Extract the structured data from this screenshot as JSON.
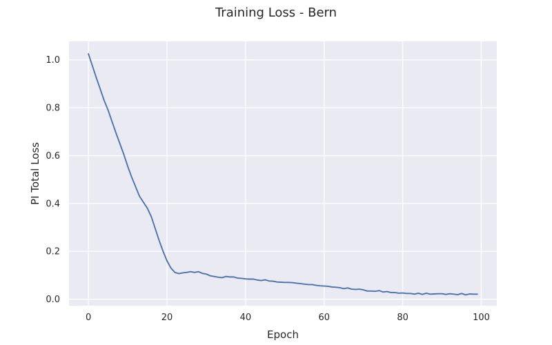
{
  "chart_data": {
    "type": "line",
    "title": "Training Loss - Bern",
    "xlabel": "Epoch",
    "ylabel": "PI Total Loss",
    "xlim": [
      -4.95,
      103.95
    ],
    "ylim": [
      -0.027,
      1.077
    ],
    "xticks": [
      0,
      20,
      40,
      60,
      80,
      100
    ],
    "xtick_labels": [
      "0",
      "20",
      "40",
      "60",
      "80",
      "100"
    ],
    "yticks": [
      0.0,
      0.2,
      0.4,
      0.6,
      0.8,
      1.0
    ],
    "ytick_labels": [
      "0.0",
      "0.2",
      "0.4",
      "0.6",
      "0.8",
      "1.0"
    ],
    "grid": true,
    "legend": "none",
    "colors": {
      "background": "#eaeaf2",
      "grid": "#ffffff",
      "series": "#4c72b0"
    },
    "series": [
      {
        "x": [
          0,
          1,
          2,
          3,
          4,
          5,
          6,
          7,
          8,
          9,
          10,
          11,
          12,
          13,
          14,
          15,
          16,
          17,
          18,
          19,
          20,
          21,
          22,
          23,
          24,
          25,
          26,
          27,
          28,
          29,
          30,
          31,
          32,
          33,
          34,
          35,
          36,
          37,
          38,
          39,
          40,
          41,
          42,
          43,
          44,
          45,
          46,
          47,
          48,
          49,
          50,
          51,
          52,
          53,
          54,
          55,
          56,
          57,
          58,
          59,
          60,
          61,
          62,
          63,
          64,
          65,
          66,
          67,
          68,
          69,
          70,
          71,
          72,
          73,
          74,
          75,
          76,
          77,
          78,
          79,
          80,
          81,
          82,
          83,
          84,
          85,
          86,
          87,
          88,
          89,
          90,
          91,
          92,
          93,
          94,
          95,
          96,
          97,
          98,
          99
        ],
        "values": [
          1.025,
          0.975,
          0.925,
          0.878,
          0.83,
          0.79,
          0.742,
          0.695,
          0.65,
          0.605,
          0.555,
          0.51,
          0.47,
          0.43,
          0.405,
          0.38,
          0.345,
          0.295,
          0.245,
          0.2,
          0.16,
          0.13,
          0.112,
          0.107,
          0.11,
          0.112,
          0.115,
          0.112,
          0.115,
          0.108,
          0.105,
          0.098,
          0.095,
          0.092,
          0.09,
          0.095,
          0.093,
          0.093,
          0.088,
          0.087,
          0.085,
          0.084,
          0.084,
          0.08,
          0.078,
          0.081,
          0.076,
          0.075,
          0.072,
          0.071,
          0.07,
          0.07,
          0.069,
          0.067,
          0.065,
          0.063,
          0.061,
          0.061,
          0.058,
          0.056,
          0.055,
          0.054,
          0.051,
          0.05,
          0.048,
          0.044,
          0.047,
          0.042,
          0.041,
          0.042,
          0.039,
          0.034,
          0.034,
          0.033,
          0.036,
          0.03,
          0.032,
          0.028,
          0.028,
          0.025,
          0.026,
          0.024,
          0.024,
          0.021,
          0.025,
          0.02,
          0.025,
          0.021,
          0.022,
          0.023,
          0.023,
          0.02,
          0.023,
          0.021,
          0.019,
          0.024,
          0.018,
          0.022,
          0.021,
          0.021
        ]
      }
    ]
  }
}
